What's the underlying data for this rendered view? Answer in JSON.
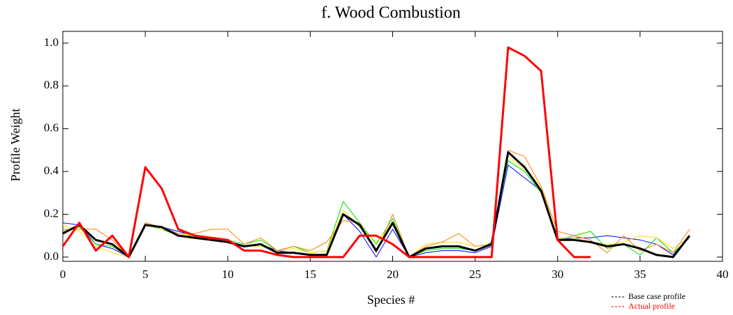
{
  "chart_data": {
    "type": "line",
    "title": "f.  Wood Combustion",
    "xlabel": "Species #",
    "ylabel": "Profile Weight",
    "x": [
      0,
      1,
      2,
      3,
      4,
      5,
      6,
      7,
      8,
      9,
      10,
      11,
      12,
      13,
      14,
      15,
      16,
      17,
      18,
      19,
      20,
      21,
      22,
      23,
      24,
      25,
      26,
      27,
      28,
      29,
      30,
      31,
      32,
      33,
      34,
      35,
      36,
      37,
      38
    ],
    "xlim": [
      0,
      40
    ],
    "xticks": [
      0,
      5,
      10,
      15,
      20,
      25,
      30,
      35,
      40
    ],
    "ylim": [
      -0.02,
      1.055
    ],
    "yticks": [
      {
        "value": 0,
        "label": "0.0"
      },
      0.2,
      0.4,
      0.6,
      0.8,
      {
        "value": 1,
        "label": "1.0"
      }
    ],
    "series": [
      {
        "color": "#0000ff",
        "width": 1,
        "values": [
          0.16,
          0.15,
          0.06,
          0.04,
          0,
          0.15,
          0.14,
          0.12,
          0.1,
          0.09,
          0.07,
          0.05,
          0.06,
          0.03,
          0.02,
          0.01,
          0.01,
          0.2,
          0.12,
          0,
          0.13,
          0,
          0.02,
          0.03,
          0.03,
          0.02,
          0.05,
          0.43,
          0.37,
          0.31,
          0.08,
          0.09,
          0.09,
          0.1,
          0.09,
          0.08,
          0.06,
          0.01,
          0.1
        ]
      },
      {
        "color": "#00e000",
        "width": 1,
        "values": [
          0.12,
          0.14,
          0.06,
          0.05,
          0,
          0.15,
          0.13,
          0.1,
          0.1,
          0.09,
          0.08,
          0.06,
          0.08,
          0.03,
          0.05,
          0.02,
          0.03,
          0.26,
          0.16,
          0.06,
          0.18,
          0,
          0.03,
          0.04,
          0.04,
          0.03,
          0.07,
          0.45,
          0.4,
          0.3,
          0.08,
          0.1,
          0.12,
          0.04,
          0.06,
          0.01,
          0.09,
          0.02,
          0.09
        ]
      },
      {
        "color": "#ffdd00",
        "width": 1,
        "values": [
          0.15,
          0.12,
          0.05,
          0.02,
          0,
          0.16,
          0.13,
          0.11,
          0.1,
          0.09,
          0.07,
          0.05,
          0.05,
          0.03,
          0.04,
          0.02,
          0.03,
          0.22,
          0.14,
          0.07,
          0.16,
          0,
          0.06,
          0.07,
          0.07,
          0.05,
          0.06,
          0.47,
          0.41,
          0.33,
          0.09,
          0.09,
          0.07,
          0.06,
          0.07,
          0.1,
          0.09,
          0.04,
          0.09
        ]
      },
      {
        "color": "#ff8000",
        "width": 1,
        "values": [
          0.13,
          0.13,
          0.13,
          0.08,
          0,
          0.16,
          0.14,
          0.11,
          0.11,
          0.13,
          0.13,
          0.06,
          0.09,
          0.03,
          0.05,
          0.03,
          0.07,
          0.17,
          0.16,
          0.02,
          0.2,
          0,
          0.05,
          0.07,
          0.11,
          0.05,
          0.06,
          0.5,
          0.47,
          0.33,
          0.12,
          0.1,
          0.08,
          0.02,
          0.1,
          0.03,
          0.06,
          0.02,
          0.13
        ]
      },
      {
        "name": "Base case profile",
        "color": "#000000",
        "width": 3,
        "values": [
          0.11,
          0.15,
          0.08,
          0.06,
          0,
          0.15,
          0.14,
          0.1,
          0.09,
          0.08,
          0.07,
          0.05,
          0.06,
          0.02,
          0.02,
          0.01,
          0.01,
          0.2,
          0.15,
          0.03,
          0.16,
          0,
          0.04,
          0.05,
          0.05,
          0.03,
          0.06,
          0.49,
          0.42,
          0.31,
          0.08,
          0.08,
          0.07,
          0.05,
          0.06,
          0.04,
          0.01,
          0,
          0.1
        ]
      },
      {
        "name": "Actual profile",
        "color": "#ff0000",
        "width": 3,
        "values": [
          0.05,
          0.16,
          0.03,
          0.1,
          0,
          0.42,
          0.32,
          0.13,
          0.1,
          0.09,
          0.08,
          0.03,
          0.03,
          0.01,
          0,
          0,
          0,
          0,
          0.1,
          0.1,
          0.06,
          0,
          0,
          0,
          0,
          0,
          0,
          0.98,
          0.94,
          0.87,
          0.08,
          0,
          0,
          null,
          null,
          null,
          null,
          null,
          null
        ]
      }
    ]
  }
}
